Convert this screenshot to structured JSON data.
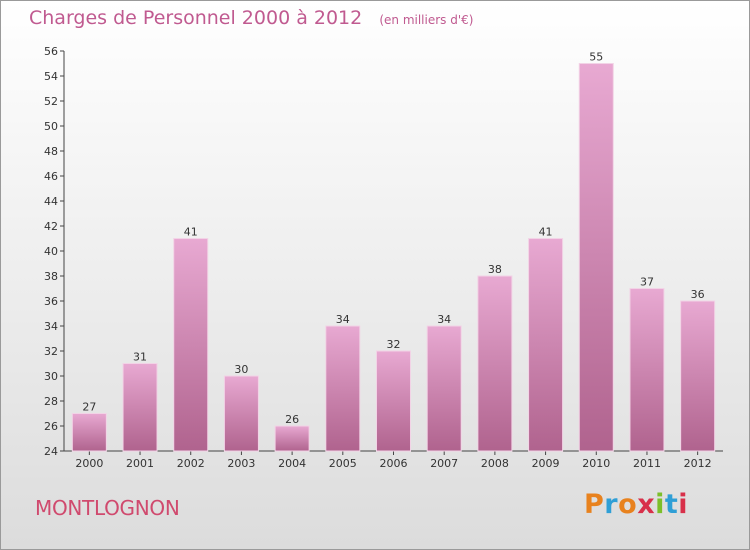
{
  "header": {
    "title": "Charges de Personnel 2000 à 2012",
    "unit": "(en milliers d'€)"
  },
  "footer": {
    "commune": "MONTLOGNON",
    "logo_text": "Proxiti",
    "logo_colors": [
      "#e8821e",
      "#2f9fd6",
      "#e8821e",
      "#d8304a",
      "#7cbf2a",
      "#2f9fd6",
      "#d8304a"
    ]
  },
  "colors": {
    "bar_top": "#e8a9d2",
    "bar_bottom": "#b0638e",
    "title": "#c05a90",
    "commune": "#d04a6e"
  },
  "chart_data": {
    "type": "bar",
    "title": "Charges de Personnel 2000 à 2012",
    "subtitle": "(en milliers d'€)",
    "categories": [
      "2000",
      "2001",
      "2002",
      "2003",
      "2004",
      "2005",
      "2006",
      "2007",
      "2008",
      "2009",
      "2010",
      "2011",
      "2012"
    ],
    "values": [
      27,
      31,
      41,
      30,
      26,
      34,
      32,
      34,
      38,
      41,
      55,
      37,
      36
    ],
    "ylim": [
      24,
      56
    ],
    "ytick_step": 2,
    "grid": false,
    "data_labels": true
  }
}
